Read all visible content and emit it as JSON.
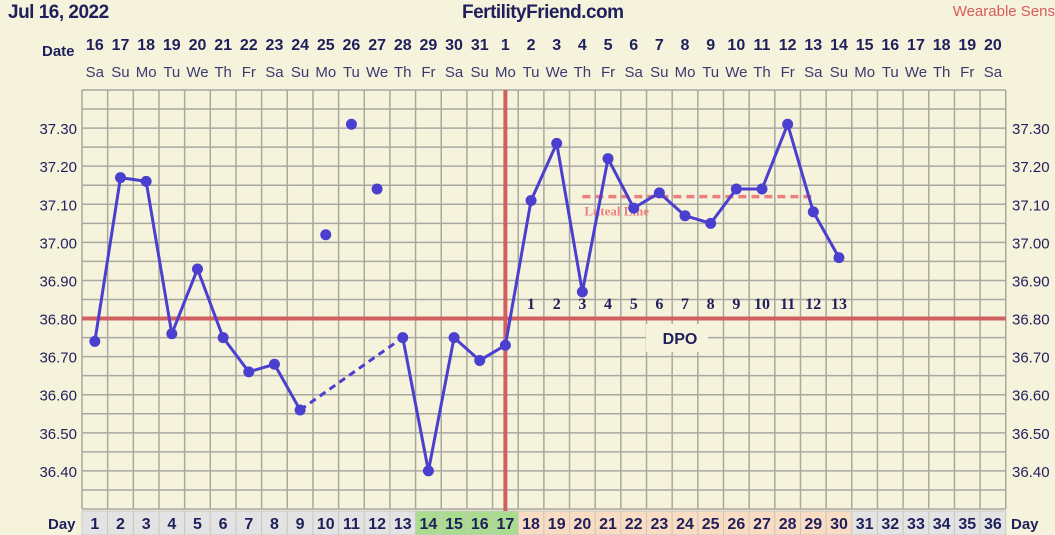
{
  "header": {
    "date": "Jul 16, 2022",
    "site": "FertilityFriend.com",
    "wearable_label": "Wearable Sens"
  },
  "colors": {
    "background": "#f6f3dc",
    "line": "#4a3fcf",
    "coverline": "#d06060",
    "luteal": "#ec7f7f",
    "text": "#1f1f5c",
    "grid": "#a8a8a0",
    "day_grey": "#e3e3e3",
    "day_green": "#a9dc8e",
    "day_peach": "#f9dcc2"
  },
  "chart_data": {
    "type": "line",
    "title": "FertilityFriend.com",
    "row_labels": {
      "date": "Date",
      "day": "Day",
      "dpo": "DPO",
      "luteal": "Luteal Line"
    },
    "dates": [
      "16",
      "17",
      "18",
      "19",
      "20",
      "21",
      "22",
      "23",
      "24",
      "25",
      "26",
      "27",
      "28",
      "29",
      "30",
      "31",
      "1",
      "2",
      "3",
      "4",
      "5",
      "6",
      "7",
      "8",
      "9",
      "10",
      "11",
      "12",
      "13",
      "14",
      "15",
      "16",
      "17",
      "18",
      "19",
      "20"
    ],
    "weekdays": [
      "Sa",
      "Su",
      "Mo",
      "Tu",
      "We",
      "Th",
      "Fr",
      "Sa",
      "Su",
      "Mo",
      "Tu",
      "We",
      "Th",
      "Fr",
      "Sa",
      "Su",
      "Mo",
      "Tu",
      "We",
      "Th",
      "Fr",
      "Sa",
      "Su",
      "Mo",
      "Tu",
      "We",
      "Th",
      "Fr",
      "Sa",
      "Su",
      "Mo",
      "Tu",
      "We",
      "Th",
      "Fr",
      "Sa"
    ],
    "days": [
      1,
      2,
      3,
      4,
      5,
      6,
      7,
      8,
      9,
      10,
      11,
      12,
      13,
      14,
      15,
      16,
      17,
      18,
      19,
      20,
      21,
      22,
      23,
      24,
      25,
      26,
      27,
      28,
      29,
      30,
      31,
      32,
      33,
      34,
      35,
      36
    ],
    "day_phase": [
      "grey",
      "grey",
      "grey",
      "grey",
      "grey",
      "grey",
      "grey",
      "grey",
      "grey",
      "grey",
      "grey",
      "grey",
      "grey",
      "green",
      "green",
      "green",
      "green",
      "peach",
      "peach",
      "peach",
      "peach",
      "peach",
      "peach",
      "peach",
      "peach",
      "peach",
      "peach",
      "peach",
      "peach",
      "peach",
      "grey",
      "grey",
      "grey",
      "grey",
      "grey",
      "grey"
    ],
    "yticks": [
      "37.30",
      "37.20",
      "37.10",
      "37.00",
      "36.90",
      "36.80",
      "36.70",
      "36.60",
      "36.50",
      "36.40"
    ],
    "ylim": [
      36.3,
      37.4
    ],
    "temps": [
      {
        "day": 1,
        "t": 36.74
      },
      {
        "day": 2,
        "t": 37.17
      },
      {
        "day": 3,
        "t": 37.16
      },
      {
        "day": 4,
        "t": 36.76
      },
      {
        "day": 5,
        "t": 36.93
      },
      {
        "day": 6,
        "t": 36.75
      },
      {
        "day": 7,
        "t": 36.66
      },
      {
        "day": 8,
        "t": 36.68
      },
      {
        "day": 9,
        "t": 36.56
      },
      {
        "day": 10,
        "t": 37.02,
        "discarded": true
      },
      {
        "day": 11,
        "t": 37.31,
        "discarded": true
      },
      {
        "day": 12,
        "t": 37.14,
        "discarded": true
      },
      {
        "day": 13,
        "t": 36.75,
        "dashed_from_prev": true
      },
      {
        "day": 14,
        "t": 36.4
      },
      {
        "day": 15,
        "t": 36.75
      },
      {
        "day": 16,
        "t": 36.69
      },
      {
        "day": 17,
        "t": 36.73
      },
      {
        "day": 18,
        "t": 37.11
      },
      {
        "day": 19,
        "t": 37.26
      },
      {
        "day": 20,
        "t": 36.87
      },
      {
        "day": 21,
        "t": 37.22
      },
      {
        "day": 22,
        "t": 37.09
      },
      {
        "day": 23,
        "t": 37.13
      },
      {
        "day": 24,
        "t": 37.07
      },
      {
        "day": 25,
        "t": 37.05
      },
      {
        "day": 26,
        "t": 37.14
      },
      {
        "day": 27,
        "t": 37.14
      },
      {
        "day": 28,
        "t": 37.31
      },
      {
        "day": 29,
        "t": 37.08
      },
      {
        "day": 30,
        "t": 36.96
      }
    ],
    "coverline": 36.8,
    "ovulation_day": 17,
    "luteal_line": {
      "t": 37.12,
      "from_day": 20,
      "to_day": 29
    },
    "dpo": [
      "1",
      "2",
      "3",
      "4",
      "5",
      "6",
      "7",
      "8",
      "9",
      "10",
      "11",
      "12",
      "13"
    ],
    "dpo_start_day": 18
  }
}
